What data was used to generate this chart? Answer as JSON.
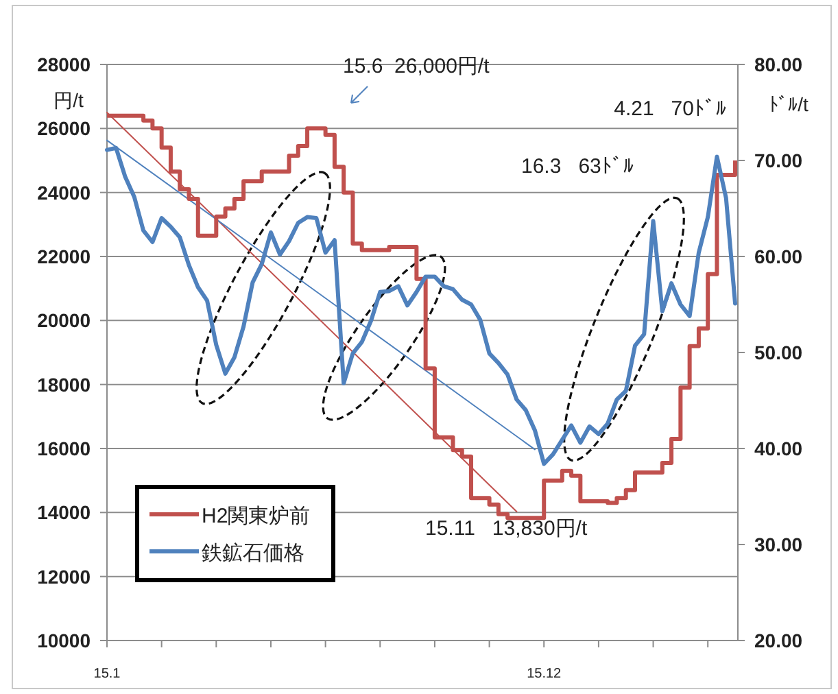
{
  "chart_data": {
    "type": "line",
    "ylabel": "円/t",
    "y2label": "ﾄﾞﾙ/t",
    "annotations": [
      "15.6  26,000円/t",
      "4.21   70ﾄﾞﾙ",
      "16.3   63ﾄﾞﾙ",
      "15.11   13,830円/t"
    ],
    "categories": [
      "15.1",
      null,
      null,
      null,
      null,
      null,
      null,
      null,
      null,
      null,
      null,
      null,
      null,
      null,
      null,
      null,
      null,
      null,
      null,
      null,
      null,
      null,
      null,
      null,
      null,
      null,
      null,
      null,
      null,
      null,
      null,
      null,
      null,
      null,
      null,
      null,
      null,
      null,
      null,
      null,
      null,
      null,
      null,
      null,
      null,
      null,
      null,
      null,
      "15.12",
      null,
      null,
      null,
      null,
      null,
      null,
      null,
      null,
      null,
      null,
      null,
      null,
      null,
      null,
      null,
      null,
      null,
      null,
      null,
      null,
      null
    ],
    "ylim": [
      10000,
      28000
    ],
    "yticks": [
      10000,
      12000,
      14000,
      16000,
      18000,
      20000,
      22000,
      24000,
      26000,
      28000
    ],
    "y2lim": [
      20,
      80
    ],
    "y2ticks": [
      {
        "value": 20,
        "label": "20.00"
      },
      {
        "value": 30,
        "label": "30.00"
      },
      {
        "value": 40,
        "label": "40.00"
      },
      {
        "value": 50,
        "label": "50.00"
      },
      {
        "value": 60,
        "label": "60.00"
      },
      {
        "value": 70,
        "label": "70.00"
      },
      {
        "value": 80,
        "label": "80.00"
      }
    ],
    "grid": "y",
    "legend": "bottom left",
    "series": [
      {
        "name": "H2関東炉前",
        "type": "step",
        "color": "#c0504d",
        "values": [
          26400,
          26400,
          26400,
          26400,
          26250,
          26000,
          25400,
          24650,
          24100,
          23800,
          22650,
          22650,
          23250,
          23500,
          23800,
          24350,
          24350,
          24650,
          24650,
          24650,
          25150,
          25450,
          26000,
          26000,
          25800,
          24800,
          24000,
          22400,
          22200,
          22200,
          22200,
          22300,
          22300,
          22300,
          21300,
          18500,
          16350,
          16350,
          15950,
          15750,
          14450,
          14450,
          14250,
          13950,
          13830,
          13830,
          13830,
          13830,
          15000,
          15000,
          15300,
          15150,
          14350,
          14350,
          14350,
          14300,
          14450,
          14700,
          15250,
          15250,
          15250,
          15550,
          16300,
          17900,
          19200,
          19750,
          21450,
          24550,
          24550,
          25000
        ]
      },
      {
        "name": "鉄鉱石価格",
        "axis": "y2",
        "color": "#4f81bd",
        "values": [
          71.1,
          71.3,
          68.3,
          66.2,
          62.7,
          61.5,
          64.0,
          63.1,
          62.0,
          59.1,
          56.8,
          55.4,
          50.8,
          47.8,
          49.5,
          52.7,
          57.3,
          59.2,
          62.5,
          60.2,
          61.6,
          63.5,
          64.1,
          64.0,
          60.4,
          61.7,
          46.8,
          49.9,
          51.1,
          53.3,
          56.3,
          56.4,
          56.9,
          54.9,
          56.3,
          57.9,
          57.9,
          56.9,
          56.6,
          55.5,
          55.0,
          53.4,
          49.9,
          48.9,
          47.7,
          45.1,
          44.0,
          41.9,
          38.4,
          39.4,
          40.9,
          42.4,
          40.6,
          42.3,
          41.5,
          42.6,
          45.1,
          46.0,
          50.7,
          51.9,
          63.7,
          54.3,
          57.2,
          55.0,
          53.8,
          60.4,
          64.1,
          70.4,
          66.1,
          55.1
        ]
      },
      {
        "type": "line",
        "color": "#c0504d",
        "values": [
          26500,
          null,
          null,
          null,
          null,
          null,
          null,
          null,
          null,
          null,
          null,
          null,
          null,
          null,
          null,
          null,
          null,
          null,
          null,
          null,
          null,
          null,
          null,
          null,
          null,
          null,
          null,
          null,
          null,
          null,
          null,
          null,
          null,
          null,
          null,
          null,
          null,
          null,
          null,
          null,
          null,
          null,
          null,
          null,
          null,
          14030,
          null,
          null,
          null,
          null,
          null,
          null,
          null,
          null,
          null,
          null,
          null,
          null,
          null,
          null,
          null,
          null,
          null,
          null,
          null,
          null,
          null,
          null,
          null,
          null
        ]
      },
      {
        "type": "line",
        "axis": "y2",
        "color": "#4f81bd",
        "values": [
          72.1,
          null,
          null,
          null,
          null,
          null,
          null,
          null,
          null,
          null,
          null,
          null,
          null,
          null,
          null,
          null,
          null,
          null,
          null,
          null,
          null,
          null,
          null,
          null,
          null,
          null,
          null,
          null,
          null,
          null,
          null,
          null,
          null,
          null,
          null,
          null,
          null,
          null,
          null,
          null,
          null,
          null,
          null,
          null,
          null,
          null,
          null,
          39.9,
          null,
          null,
          null,
          null,
          null,
          null,
          null,
          null,
          null,
          null,
          null,
          null,
          null,
          null,
          null,
          null,
          null,
          null,
          null,
          null,
          null,
          null
        ]
      }
    ]
  }
}
